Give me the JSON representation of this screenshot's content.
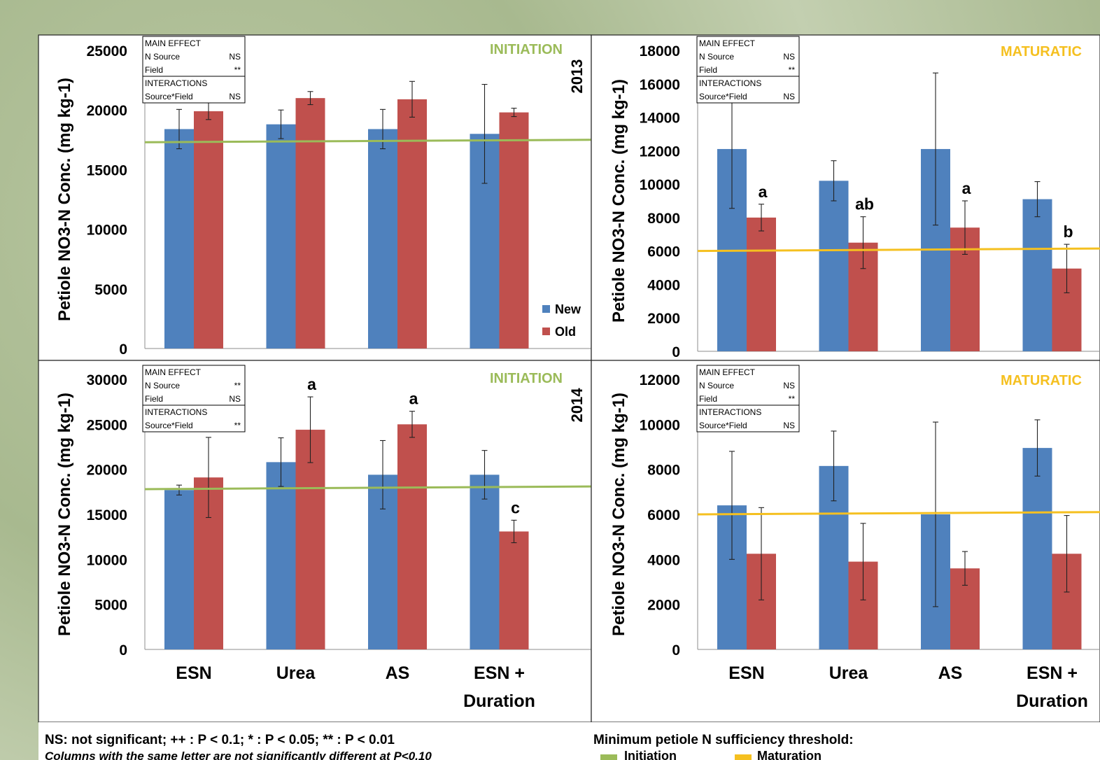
{
  "colors": {
    "new": "#4f81bd",
    "old": "#c0504d",
    "initiation": "#9bbb59",
    "maturation": "#f5c020",
    "panel_bg": "#ffffff",
    "background": "#b3c29b"
  },
  "footer": {
    "significance": "NS: not significant; ++ : P < 0.1; * : P < 0.05; ** : P < 0.01",
    "letters_note": "Columns with the same letter are not significantly different at P<0.10",
    "threshold_title": "Minimum petiole N sufficiency threshold:",
    "threshold_initiation": "Initiation",
    "threshold_maturation": "Maturation"
  },
  "chart_data": [
    {
      "id": "init-2013",
      "type": "bar",
      "year": "2013",
      "stage": "INITIATION",
      "stage_color": "initiation",
      "ylabel": "Petiole NO3-N Conc. (mg kg-1)",
      "ylim": [
        0,
        25000
      ],
      "yticks": [
        "0",
        "5000",
        "10000",
        "15000",
        "20000",
        "25000"
      ],
      "categories": [
        [
          "ESN"
        ],
        [
          "Urea"
        ],
        [
          "AS"
        ],
        [
          "ESN +",
          "Duration"
        ]
      ],
      "show_xlabels": false,
      "threshold": [
        17300,
        17500
      ],
      "series": [
        {
          "name": "New",
          "color": "new",
          "values": [
            18400,
            18800,
            18400,
            18000
          ],
          "errors": [
            1650,
            1200,
            1650,
            4150
          ],
          "letters": [
            "",
            "",
            "",
            ""
          ]
        },
        {
          "name": "Old",
          "color": "old",
          "values": [
            19900,
            21000,
            20900,
            19800
          ],
          "errors": [
            700,
            550,
            1500,
            350
          ],
          "letters": [
            "",
            "",
            "",
            ""
          ]
        }
      ],
      "legend": true,
      "stats": {
        "main_effect": "MAIN EFFECT",
        "interactions": "INTERACTIONS",
        "rows": [
          {
            "label": "N Source",
            "value": "NS"
          },
          {
            "label": "Field",
            "value": "**"
          }
        ],
        "interaction_rows": [
          {
            "label": "Source*Field",
            "value": "NS"
          }
        ]
      }
    },
    {
      "id": "mat-2013",
      "type": "bar",
      "stage": "MATURATIC",
      "stage_color": "maturation",
      "ylabel": "Petiole NO3-N Conc. (mg kg-1)",
      "ylim": [
        0,
        18000
      ],
      "yticks": [
        "0",
        "2000",
        "4000",
        "6000",
        "8000",
        "10000",
        "12000",
        "14000",
        "16000",
        "18000"
      ],
      "categories": [
        [
          "ESN"
        ],
        [
          "Urea"
        ],
        [
          "AS"
        ],
        [
          "ESN +",
          "Duration"
        ]
      ],
      "show_xlabels": false,
      "threshold": [
        6000,
        6150
      ],
      "series": [
        {
          "name": "New",
          "color": "new",
          "values": [
            12100,
            10200,
            12100,
            9100
          ],
          "errors": [
            3550,
            1200,
            4550,
            1050
          ],
          "letters": [
            "",
            "",
            "",
            ""
          ]
        },
        {
          "name": "Old",
          "color": "old",
          "values": [
            8000,
            6500,
            7400,
            4950
          ],
          "errors": [
            800,
            1550,
            1600,
            1450
          ],
          "letters": [
            "a",
            "ab",
            "a",
            "b"
          ]
        }
      ],
      "legend": false,
      "stats": {
        "main_effect": "MAIN EFFECT",
        "interactions": "INTERACTIONS",
        "rows": [
          {
            "label": "N Source",
            "value": "NS"
          },
          {
            "label": "Field",
            "value": "**"
          }
        ],
        "interaction_rows": [
          {
            "label": "Source*Field",
            "value": "NS"
          }
        ]
      }
    },
    {
      "id": "init-2014",
      "type": "bar",
      "year": "2014",
      "stage": "INITIATION",
      "stage_color": "initiation",
      "ylabel": "Petiole NO3-N Conc. (mg kg-1)",
      "ylim": [
        0,
        30000
      ],
      "yticks": [
        "0",
        "5000",
        "10000",
        "15000",
        "20000",
        "25000",
        "30000"
      ],
      "categories": [
        [
          "ESN"
        ],
        [
          "Urea"
        ],
        [
          "AS"
        ],
        [
          "ESN +",
          "Duration"
        ]
      ],
      "show_xlabels": true,
      "threshold": [
        17800,
        18100
      ],
      "series": [
        {
          "name": "New",
          "color": "new",
          "values": [
            17700,
            20800,
            19400,
            19400
          ],
          "errors": [
            550,
            2700,
            3800,
            2700
          ],
          "letters": [
            "",
            "",
            "",
            ""
          ]
        },
        {
          "name": "Old",
          "color": "old",
          "values": [
            19100,
            24400,
            25000,
            13100
          ],
          "errors": [
            4450,
            3650,
            1450,
            1250
          ],
          "letters": [
            "",
            "a",
            "a",
            "c"
          ]
        }
      ],
      "legend": false,
      "stats": {
        "main_effect": "MAIN EFFECT",
        "interactions": "INTERACTIONS",
        "rows": [
          {
            "label": "N Source",
            "value": "**"
          },
          {
            "label": "Field",
            "value": "NS"
          }
        ],
        "interaction_rows": [
          {
            "label": "Source*Field",
            "value": "**"
          }
        ]
      }
    },
    {
      "id": "mat-2014",
      "type": "bar",
      "stage": "MATURATIC",
      "stage_color": "maturation",
      "ylabel": "Petiole NO3-N Conc. (mg kg-1)",
      "ylim": [
        0,
        12000
      ],
      "yticks": [
        "0",
        "2000",
        "4000",
        "6000",
        "8000",
        "10000",
        "12000"
      ],
      "categories": [
        [
          "ESN"
        ],
        [
          "Urea"
        ],
        [
          "AS"
        ],
        [
          "ESN +",
          "Duration"
        ]
      ],
      "show_xlabels": true,
      "threshold": [
        6000,
        6100
      ],
      "series": [
        {
          "name": "New",
          "color": "new",
          "values": [
            6400,
            8150,
            6000,
            8950
          ],
          "errors": [
            2400,
            1550,
            4100,
            1250
          ],
          "letters": [
            "",
            "",
            "",
            ""
          ]
        },
        {
          "name": "Old",
          "color": "old",
          "values": [
            4250,
            3900,
            3600,
            4250
          ],
          "errors": [
            2050,
            1700,
            750,
            1700
          ],
          "letters": [
            "",
            "",
            "",
            ""
          ]
        }
      ],
      "legend": false,
      "stats": {
        "main_effect": "MAIN EFFECT",
        "interactions": "INTERACTIONS",
        "rows": [
          {
            "label": "N Source",
            "value": "NS"
          },
          {
            "label": "Field",
            "value": "**"
          }
        ],
        "interaction_rows": [
          {
            "label": "Source*Field",
            "value": "NS"
          }
        ]
      }
    }
  ]
}
